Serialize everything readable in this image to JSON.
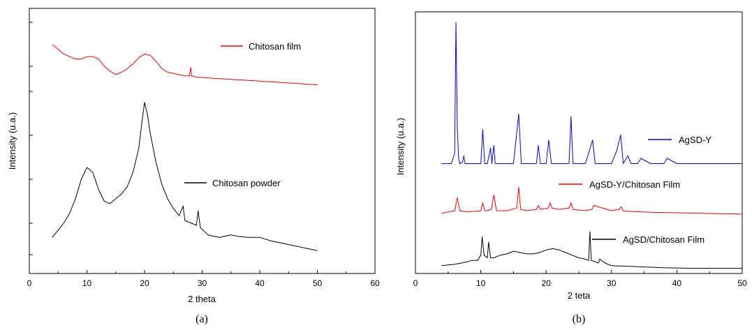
{
  "chart_data": [
    {
      "type": "line",
      "caption": "(a)",
      "xlabel": "2 theta",
      "ylabel": "Intensity (u.a.)",
      "xlim": [
        0,
        60
      ],
      "xticks": [
        0,
        10,
        20,
        30,
        40,
        50,
        60
      ],
      "y_tick_labels": "none",
      "grid": false,
      "series": [
        {
          "name": "Chitosan film",
          "color": "#ff0000",
          "x": [
            4,
            5,
            6,
            7,
            8,
            9,
            10,
            11,
            12,
            13,
            14,
            15,
            16,
            17,
            18,
            19,
            20,
            21,
            22,
            23,
            24,
            25,
            26,
            27,
            27.8,
            28,
            28.2,
            29,
            30,
            32,
            34,
            36,
            38,
            40,
            42,
            44,
            46,
            48,
            50
          ],
          "y": [
            0.9,
            0.88,
            0.86,
            0.85,
            0.84,
            0.84,
            0.85,
            0.85,
            0.84,
            0.81,
            0.79,
            0.775,
            0.785,
            0.8,
            0.82,
            0.845,
            0.86,
            0.855,
            0.83,
            0.8,
            0.785,
            0.78,
            0.775,
            0.77,
            0.77,
            0.805,
            0.77,
            0.765,
            0.763,
            0.76,
            0.757,
            0.754,
            0.751,
            0.748,
            0.745,
            0.742,
            0.739,
            0.736,
            0.733
          ]
        },
        {
          "name": "Chitosan powder",
          "color": "#000000",
          "x": [
            4,
            5,
            6,
            7,
            8,
            9,
            10,
            11,
            12,
            13,
            14,
            15,
            16,
            17,
            18,
            19,
            19.5,
            20,
            20.5,
            21,
            22,
            23,
            24,
            25,
            26,
            26.7,
            27,
            28,
            29,
            29.3,
            29.7,
            31,
            33,
            35,
            36,
            38,
            40,
            42,
            44,
            46,
            48,
            50
          ],
          "y": [
            0.1,
            0.13,
            0.16,
            0.2,
            0.26,
            0.34,
            0.39,
            0.37,
            0.3,
            0.25,
            0.24,
            0.26,
            0.28,
            0.31,
            0.37,
            0.47,
            0.57,
            0.66,
            0.61,
            0.53,
            0.41,
            0.32,
            0.26,
            0.22,
            0.19,
            0.23,
            0.17,
            0.16,
            0.15,
            0.21,
            0.14,
            0.11,
            0.1,
            0.11,
            0.105,
            0.1,
            0.1,
            0.085,
            0.075,
            0.065,
            0.055,
            0.045
          ]
        }
      ]
    },
    {
      "type": "line",
      "caption": "(b)",
      "xlabel": "2 teta",
      "ylabel": "Intensity (u.a.)",
      "xlim": [
        0,
        50
      ],
      "xticks": [
        0,
        10,
        20,
        30,
        40,
        50
      ],
      "y_tick_labels": "none",
      "grid": false,
      "series": [
        {
          "name": "AgSD-Y",
          "color": "#0000ff",
          "x": [
            4,
            5.5,
            6,
            6.2,
            6.4,
            6.6,
            6.8,
            7.2,
            7.4,
            7.6,
            9,
            10,
            10.3,
            10.6,
            11,
            11.5,
            11.7,
            12,
            12.2,
            13,
            15,
            15.8,
            16.2,
            17,
            18.5,
            18.8,
            19.1,
            20,
            20.4,
            20.8,
            22,
            23.5,
            23.8,
            24.1,
            26,
            27.1,
            27.5,
            29,
            30,
            30.8,
            31.4,
            31.8,
            32.5,
            33,
            34,
            34.5,
            36,
            38,
            38.5,
            40,
            42,
            44,
            46,
            48,
            50
          ],
          "y": [
            0.42,
            0.42,
            0.46,
            0.96,
            0.56,
            0.44,
            0.42,
            0.425,
            0.45,
            0.42,
            0.42,
            0.42,
            0.55,
            0.42,
            0.42,
            0.48,
            0.42,
            0.49,
            0.42,
            0.42,
            0.42,
            0.61,
            0.42,
            0.42,
            0.42,
            0.49,
            0.42,
            0.42,
            0.51,
            0.42,
            0.42,
            0.42,
            0.6,
            0.42,
            0.42,
            0.51,
            0.42,
            0.42,
            0.42,
            0.47,
            0.53,
            0.42,
            0.45,
            0.42,
            0.42,
            0.44,
            0.42,
            0.42,
            0.44,
            0.42,
            0.42,
            0.42,
            0.42,
            0.42,
            0.42
          ]
        },
        {
          "name": "AgSD-Y/Chitosan Film",
          "color": "#ff0000",
          "x": [
            4,
            6,
            6.4,
            6.8,
            8,
            10,
            10.3,
            10.6,
            11,
            11.6,
            12,
            12.4,
            14,
            15.5,
            15.8,
            16.1,
            17,
            18.5,
            18.8,
            19.1,
            20.3,
            20.6,
            20.9,
            22,
            23.5,
            23.8,
            24.1,
            26,
            27,
            27.3,
            30,
            31.2,
            31.5,
            31.8,
            33,
            36,
            40,
            44,
            48,
            50
          ],
          "y": [
            0.23,
            0.24,
            0.29,
            0.24,
            0.235,
            0.24,
            0.27,
            0.24,
            0.24,
            0.245,
            0.3,
            0.24,
            0.24,
            0.25,
            0.33,
            0.245,
            0.24,
            0.245,
            0.26,
            0.245,
            0.25,
            0.27,
            0.25,
            0.245,
            0.25,
            0.27,
            0.245,
            0.24,
            0.245,
            0.26,
            0.24,
            0.245,
            0.255,
            0.24,
            0.237,
            0.234,
            0.232,
            0.23,
            0.228,
            0.227
          ]
        },
        {
          "name": "AgSD/Chitosan Film",
          "color": "#000000",
          "x": [
            4,
            6,
            8,
            8.6,
            9.5,
            10,
            10.2,
            10.5,
            11,
            11.2,
            11.5,
            12,
            13,
            14,
            15,
            16,
            17,
            18,
            19,
            20,
            21,
            22,
            23,
            24,
            25,
            26,
            26.5,
            26.7,
            26.9,
            27.5,
            28,
            28.2,
            29,
            30,
            32,
            34,
            36,
            38,
            40,
            42,
            44,
            46,
            48,
            50
          ],
          "y": [
            0.03,
            0.035,
            0.045,
            0.05,
            0.05,
            0.07,
            0.14,
            0.07,
            0.06,
            0.12,
            0.06,
            0.06,
            0.07,
            0.075,
            0.085,
            0.08,
            0.075,
            0.075,
            0.08,
            0.09,
            0.095,
            0.09,
            0.08,
            0.07,
            0.06,
            0.055,
            0.05,
            0.16,
            0.05,
            0.045,
            0.04,
            0.055,
            0.04,
            0.03,
            0.028,
            0.026,
            0.024,
            0.022,
            0.021,
            0.02,
            0.02,
            0.02,
            0.02,
            0.02
          ]
        }
      ]
    }
  ]
}
